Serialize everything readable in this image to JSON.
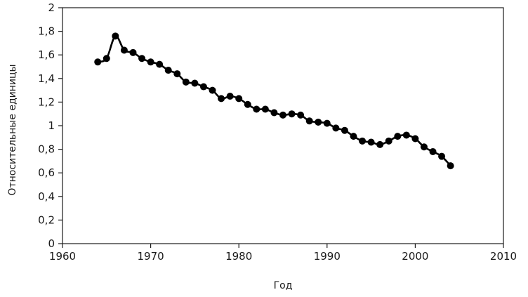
{
  "chart_data": {
    "type": "line",
    "title": "",
    "xlabel": "Год",
    "ylabel": "Относительные единицы",
    "xlim": [
      1960,
      2010
    ],
    "ylim": [
      0,
      2
    ],
    "grid": false,
    "x_ticks": [
      1960,
      1970,
      1980,
      1990,
      2000,
      2010
    ],
    "x_tick_labels": [
      "1960",
      "1970",
      "1980",
      "1990",
      "2000",
      "2010"
    ],
    "y_ticks": [
      0,
      0.2,
      0.4,
      0.6,
      0.8,
      1,
      1.2,
      1.4,
      1.6,
      1.8,
      2
    ],
    "y_tick_labels": [
      "0",
      "0,2",
      "0,4",
      "0,6",
      "0,8",
      "1",
      "1,2",
      "1,4",
      "1,6",
      "1,8",
      "2"
    ],
    "series": [
      {
        "color": "#000000",
        "marker": "circle",
        "x": [
          1964,
          1965,
          1966,
          1967,
          1968,
          1969,
          1970,
          1971,
          1972,
          1973,
          1974,
          1975,
          1976,
          1977,
          1978,
          1979,
          1980,
          1981,
          1982,
          1983,
          1984,
          1985,
          1986,
          1987,
          1988,
          1989,
          1990,
          1991,
          1992,
          1993,
          1994,
          1995,
          1996,
          1997,
          1998,
          1999,
          2000,
          2001,
          2002,
          2003,
          2004
        ],
        "y": [
          1.54,
          1.57,
          1.76,
          1.64,
          1.62,
          1.57,
          1.54,
          1.52,
          1.47,
          1.44,
          1.37,
          1.36,
          1.33,
          1.3,
          1.23,
          1.25,
          1.23,
          1.18,
          1.14,
          1.14,
          1.11,
          1.09,
          1.1,
          1.09,
          1.04,
          1.03,
          1.02,
          0.98,
          0.96,
          0.91,
          0.87,
          0.86,
          0.84,
          0.87,
          0.91,
          0.92,
          0.89,
          0.82,
          0.78,
          0.74,
          0.66
        ]
      }
    ]
  }
}
